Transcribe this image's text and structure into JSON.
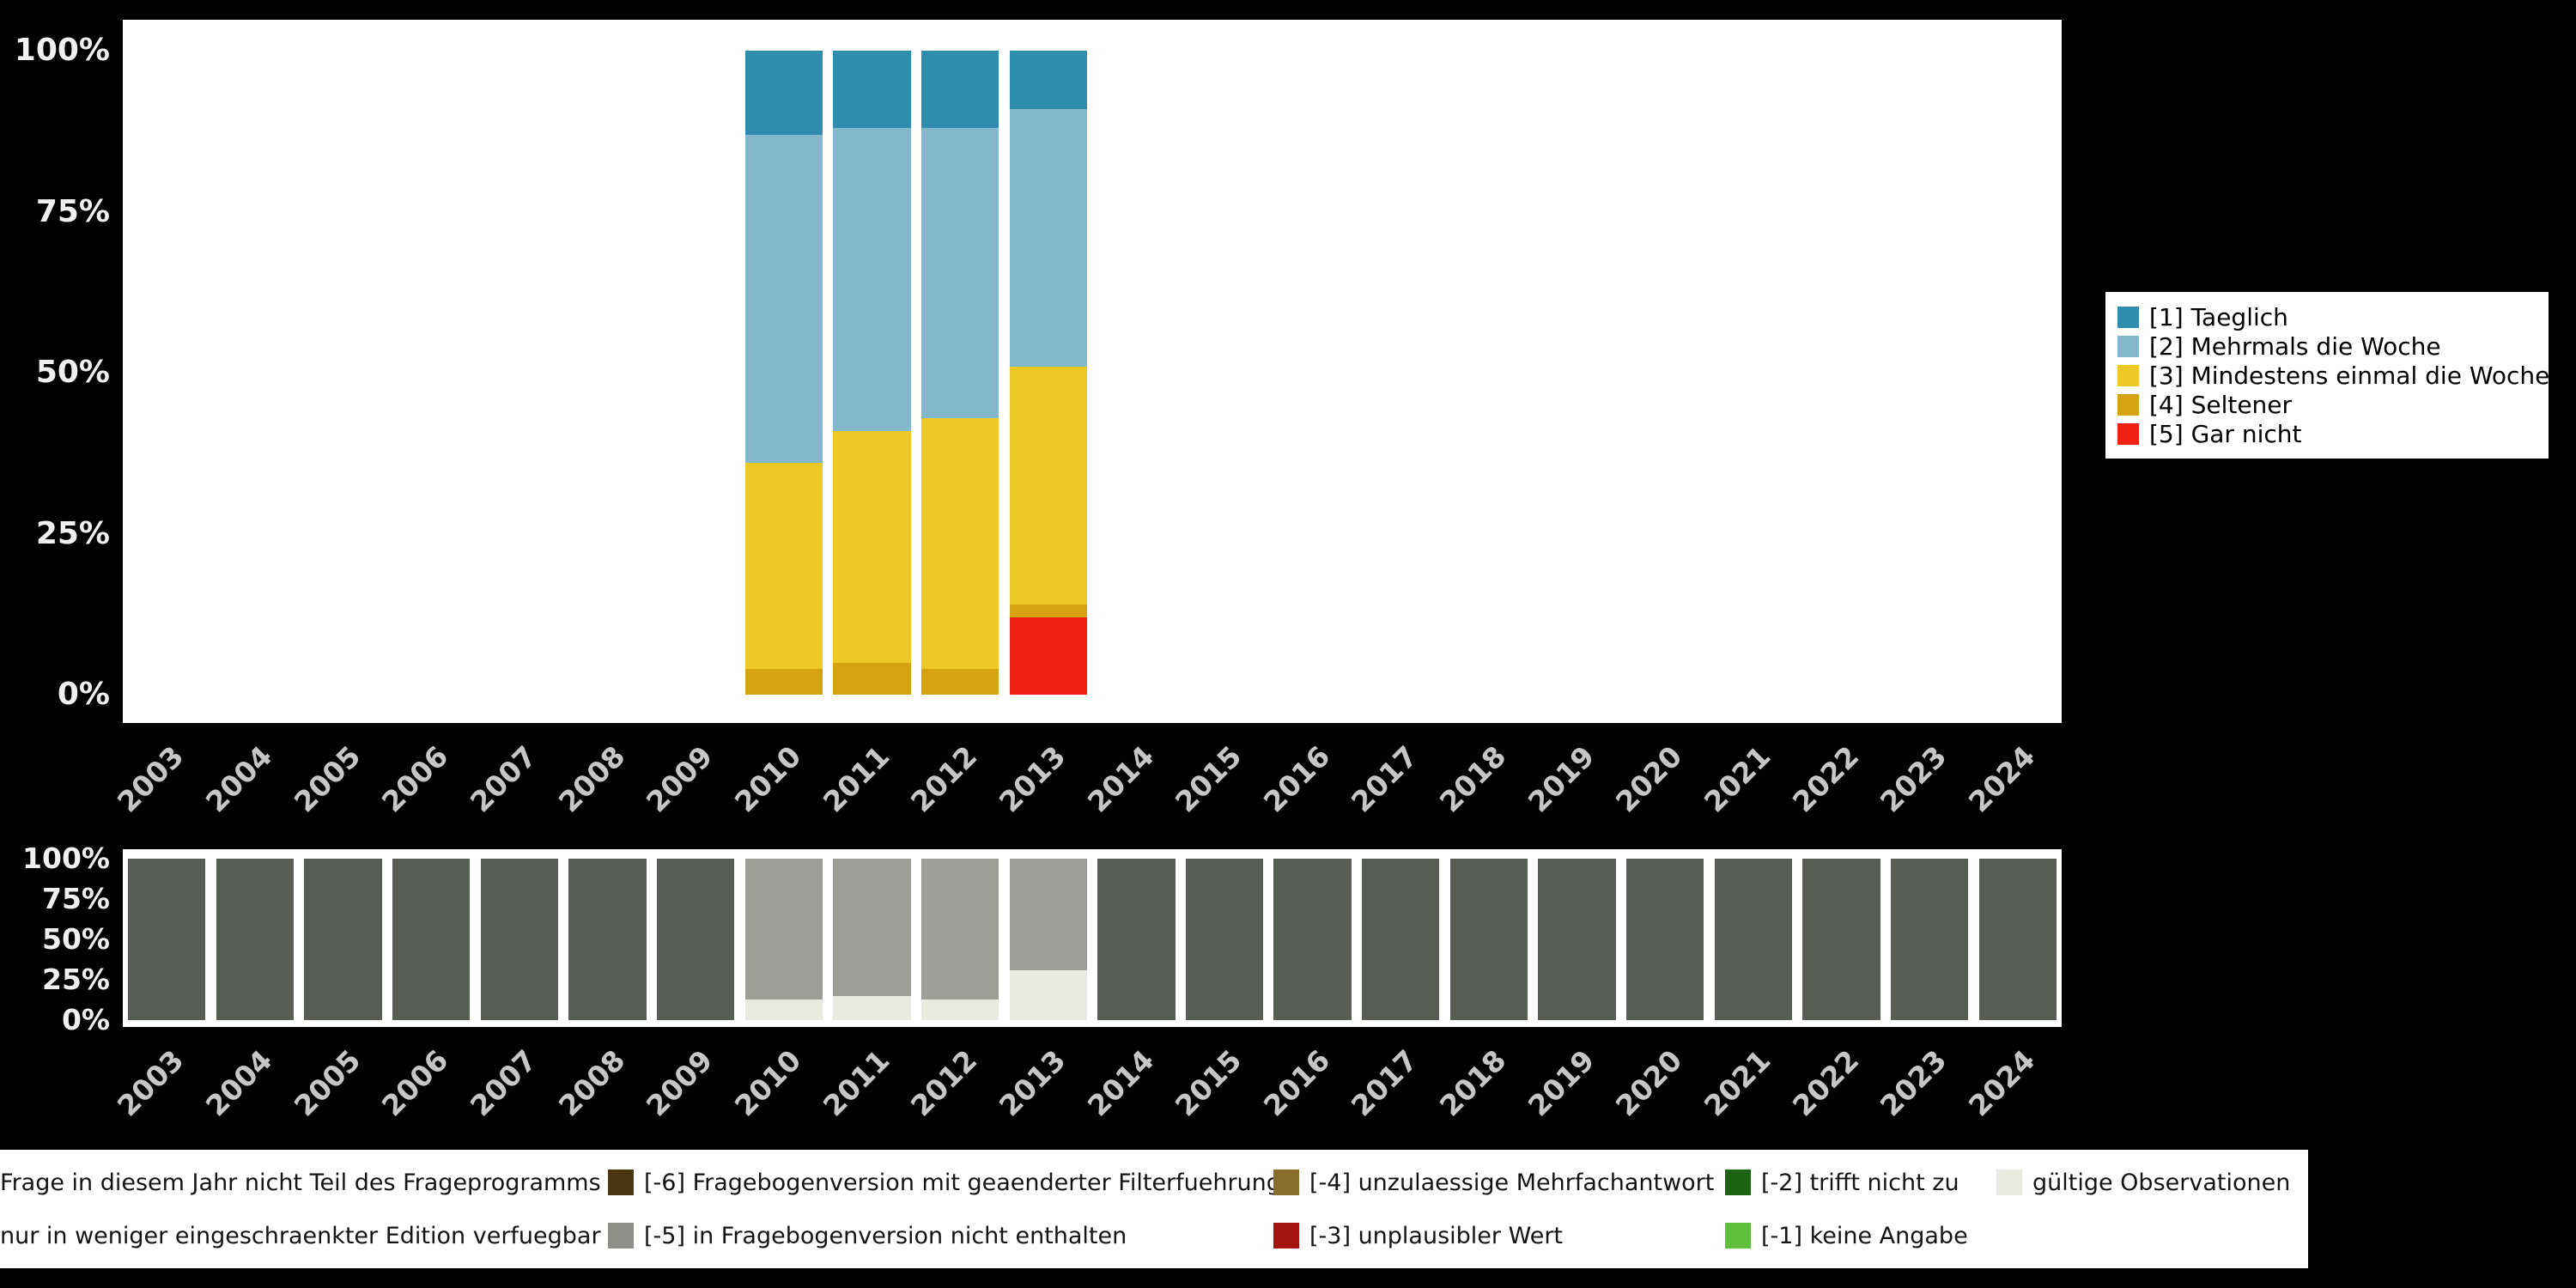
{
  "colors": {
    "background": "#000000",
    "panel": "#ffffff",
    "axis_text": "#f0f0f0",
    "year_text": "#c6c6c6"
  },
  "chart_data": [
    {
      "type": "bar",
      "stacked": true,
      "unit": "percent",
      "title": "",
      "xlabel": "",
      "ylabel": "",
      "ylim": [
        0,
        100
      ],
      "grid": false,
      "legend_position": "right",
      "y_ticks": [
        "100%",
        "75%",
        "50%",
        "25%",
        "0%"
      ],
      "categories": [
        "2003",
        "2004",
        "2005",
        "2006",
        "2007",
        "2008",
        "2009",
        "2010",
        "2011",
        "2012",
        "2013",
        "2014",
        "2015",
        "2016",
        "2017",
        "2018",
        "2019",
        "2020",
        "2021",
        "2022",
        "2023",
        "2024"
      ],
      "series": [
        {
          "name": "[1] Taeglich",
          "color": "#2e8dad",
          "values": [
            0,
            0,
            0,
            0,
            0,
            0,
            0,
            13,
            12,
            12,
            9,
            0,
            0,
            0,
            0,
            0,
            0,
            0,
            0,
            0,
            0,
            0
          ]
        },
        {
          "name": "[2] Mehrmals die Woche",
          "color": "#83b8cc",
          "values": [
            0,
            0,
            0,
            0,
            0,
            0,
            0,
            51,
            47,
            45,
            40,
            0,
            0,
            0,
            0,
            0,
            0,
            0,
            0,
            0,
            0,
            0
          ]
        },
        {
          "name": "[3] Mindestens einmal die Woche",
          "color": "#ecc927",
          "values": [
            0,
            0,
            0,
            0,
            0,
            0,
            0,
            32,
            36,
            39,
            37,
            0,
            0,
            0,
            0,
            0,
            0,
            0,
            0,
            0,
            0,
            0
          ]
        },
        {
          "name": "[4] Seltener",
          "color": "#d5a312",
          "values": [
            0,
            0,
            0,
            0,
            0,
            0,
            0,
            4,
            5,
            4,
            2,
            0,
            0,
            0,
            0,
            0,
            0,
            0,
            0,
            0,
            0,
            0
          ]
        },
        {
          "name": "[5] Gar nicht",
          "color": "#ef2112",
          "values": [
            0,
            0,
            0,
            0,
            0,
            0,
            0,
            0,
            0,
            0,
            12,
            0,
            0,
            0,
            0,
            0,
            0,
            0,
            0,
            0,
            0,
            0
          ]
        }
      ]
    },
    {
      "type": "bar",
      "stacked": true,
      "unit": "percent",
      "title": "",
      "xlabel": "",
      "ylabel": "",
      "ylim": [
        0,
        100
      ],
      "grid": false,
      "legend_position": "bottom",
      "y_ticks": [
        "100%",
        "75%",
        "50%",
        "25%",
        "0%"
      ],
      "categories": [
        "2003",
        "2004",
        "2005",
        "2006",
        "2007",
        "2008",
        "2009",
        "2010",
        "2011",
        "2012",
        "2013",
        "2014",
        "2015",
        "2016",
        "2017",
        "2018",
        "2019",
        "2020",
        "2021",
        "2022",
        "2023",
        "2024"
      ],
      "series": [
        {
          "name": "Frage in diesem Jahr nicht Teil des Frageprogramms",
          "color": "#575c55",
          "values": [
            100,
            100,
            100,
            100,
            100,
            100,
            100,
            0,
            0,
            0,
            0,
            100,
            100,
            100,
            100,
            100,
            100,
            100,
            100,
            100,
            100,
            100
          ]
        },
        {
          "name": "[-5] in Fragebogenversion nicht enthalten",
          "color": "#9e9e99",
          "values": [
            0,
            0,
            0,
            0,
            0,
            0,
            0,
            87,
            85,
            87,
            69,
            0,
            0,
            0,
            0,
            0,
            0,
            0,
            0,
            0,
            0,
            0
          ]
        },
        {
          "name": "gültige Observationen",
          "color": "#e7ebe1",
          "values": [
            0,
            0,
            0,
            0,
            0,
            0,
            0,
            13,
            15,
            13,
            31,
            0,
            0,
            0,
            0,
            0,
            0,
            0,
            0,
            0,
            0,
            0
          ]
        }
      ]
    }
  ],
  "missing_legend": {
    "rows": [
      [
        {
          "label": "Frage in diesem Jahr nicht Teil des Frageprogramms",
          "color": "#575c55",
          "clipped": true
        },
        {
          "label": "[-6] Fragebogenversion mit geaenderter Filterfuehrung",
          "color": "#4a3711",
          "clipped": false
        },
        {
          "label": "[-4] unzulaessige Mehrfachantwort",
          "color": "#8a6c2d",
          "clipped": false
        },
        {
          "label": "[-2] trifft nicht zu",
          "color": "#1c6414",
          "clipped": false
        },
        {
          "label": "gültige Observationen",
          "color": "#e7ebe1",
          "clipped": false
        }
      ],
      [
        {
          "label": "nur in weniger eingeschraenkter Edition verfuegbar",
          "color": "#a8a8a0",
          "clipped": true
        },
        {
          "label": "[-5] in Fragebogenversion nicht enthalten",
          "color": "#8f908a",
          "clipped": false
        },
        {
          "label": "[-3] unplausibler Wert",
          "color": "#a51311",
          "clipped": false
        },
        {
          "label": "[-1] keine Angabe",
          "color": "#5fbe3c",
          "clipped": false
        }
      ]
    ]
  }
}
